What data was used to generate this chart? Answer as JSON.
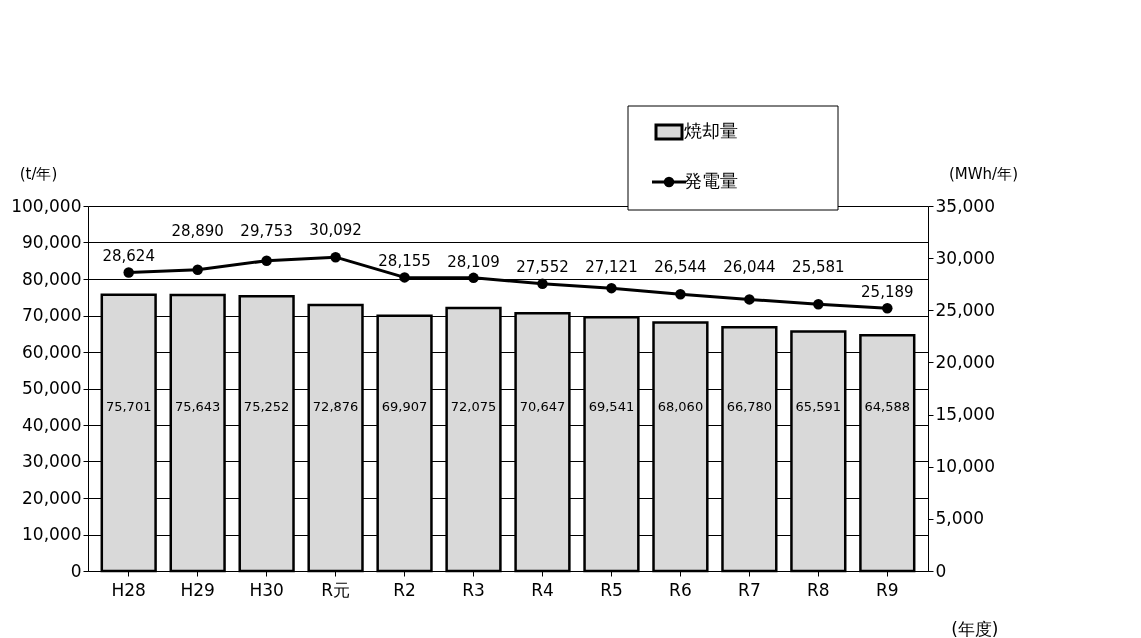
{
  "chart_data": {
    "type": "bar",
    "categories": [
      "H28",
      "H29",
      "H30",
      "R元",
      "R2",
      "R3",
      "R4",
      "R5",
      "R6",
      "R7",
      "R8",
      "R9"
    ],
    "series": [
      {
        "name": "焼却量",
        "color": "#d9d9d9",
        "values": [
          75701,
          75643,
          75252,
          72876,
          69907,
          72075,
          70647,
          69541,
          68060,
          66780,
          65591,
          64588
        ],
        "value_labels": [
          "75,701",
          "75,643",
          "75,252",
          "72,876",
          "69,907",
          "72,075",
          "70,647",
          "69,541",
          "68,060",
          "66,780",
          "65,591",
          "64,588"
        ]
      },
      {
        "name": "発電量",
        "type": "line",
        "axis": "y2",
        "color": "#000000",
        "values": [
          28624,
          28890,
          29753,
          30092,
          28155,
          28109,
          27552,
          27121,
          26544,
          26044,
          25581,
          25189
        ],
        "value_labels": [
          "28,624",
          "28,890",
          "29,753",
          "30,092",
          "28,155",
          "28,109",
          "27,552",
          "27,121",
          "26,544",
          "26,044",
          "25,581",
          "25,189"
        ]
      }
    ],
    "ylabel": "(t/年)",
    "y2label": "(MWh/年)",
    "xlabel": "(年度)",
    "ylim": [
      0,
      100000
    ],
    "yticks": [
      0,
      {
        "value": 10000,
        "label": "10,000"
      },
      {
        "value": 20000,
        "label": "20,000"
      },
      {
        "value": 30000,
        "label": "30,000"
      },
      {
        "value": 40000,
        "label": "40,000"
      },
      {
        "value": 50000,
        "label": "50,000"
      },
      {
        "value": 60000,
        "label": "60,000"
      },
      {
        "value": 70000,
        "label": "70,000"
      },
      {
        "value": 80000,
        "label": "80,000"
      },
      {
        "value": 90000,
        "label": "90,000"
      },
      {
        "value": 100000,
        "label": "100,000"
      }
    ],
    "y2lim": [
      0,
      35000
    ],
    "y2ticks": [
      0,
      {
        "value": 5000,
        "label": "5,000"
      },
      {
        "value": 10000,
        "label": "10,000"
      },
      {
        "value": 15000,
        "label": "15,000"
      },
      {
        "value": 20000,
        "label": "20,000"
      },
      {
        "value": 25000,
        "label": "25,000"
      },
      {
        "value": 30000,
        "label": "30,000"
      },
      {
        "value": 35000,
        "label": "35,000"
      }
    ],
    "grid": "y",
    "legend": "top right",
    "marker": "circle",
    "line_style": "solid"
  }
}
